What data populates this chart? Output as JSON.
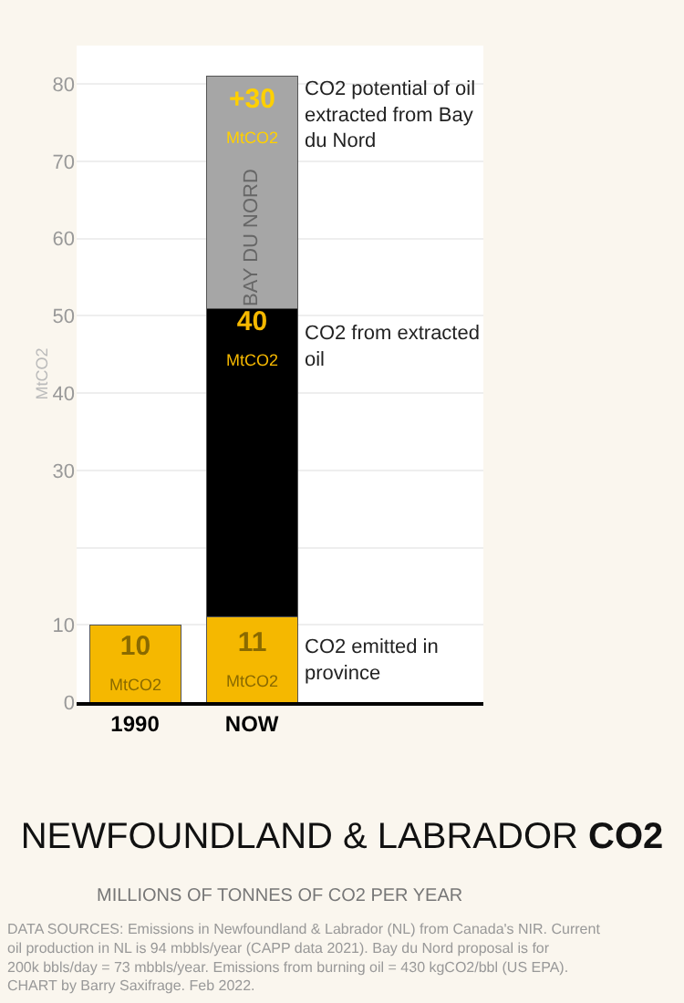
{
  "chart_data": {
    "type": "bar",
    "title": "NEWFOUNDLAND & LABRADOR CO2",
    "subtitle": "MILLIONS OF TONNES OF CO2 PER YEAR",
    "ylabel": "MtCO2",
    "categories": [
      "1990",
      "NOW"
    ],
    "stacked": true,
    "series": [
      {
        "name": "CO2 emitted in province",
        "color": "#f5b800",
        "values": [
          10,
          11
        ],
        "value_labels": [
          "10\nMtCO2",
          "11\nMtCO2"
        ]
      },
      {
        "name": "CO2 from extracted oil",
        "color": "#000000",
        "values": [
          null,
          40
        ],
        "value_labels": [
          null,
          "40\nMtCO2"
        ]
      },
      {
        "name": "CO2 potential of oil extracted from Bay du Nord",
        "color": "#a6a6a6",
        "values": [
          null,
          30
        ],
        "value_labels": [
          null,
          "+30\nMtCO2"
        ]
      }
    ],
    "ylim": [
      0,
      85
    ],
    "yticks": [
      0,
      10,
      {
        "value": 20,
        "label": null
      },
      30,
      40,
      50,
      60,
      70,
      80
    ],
    "grid": "y",
    "legend": false,
    "annotations": [
      "BAY DU NORD",
      "DATA SOURCES: Emissions in Newfoundland & Labrador (NL) from Canada's NIR. Current oil production in NL is 94 mbbls/year (CAPP data 2021). Bay du Nord proposal is for 200k bbls/day = 73 mbbls/year. Emissions from burning oil = 430 kgCO2/bbl (US EPA). CHART by Barry Saxifrage. Feb 2022."
    ]
  }
}
